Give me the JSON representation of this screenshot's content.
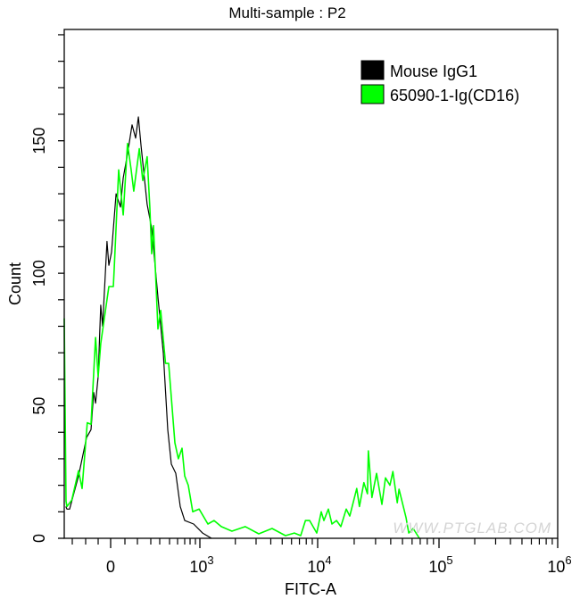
{
  "chart_data": {
    "type": "line",
    "title": "Multi-sample : P2",
    "xlabel": "FITC-A",
    "ylabel": "Count",
    "x_scale": "biexponential",
    "xlim": [
      -400,
      1000000
    ],
    "ylim": [
      0,
      192
    ],
    "x_ticks": [
      {
        "value": 0,
        "base": "0",
        "exp": ""
      },
      {
        "value": 1000,
        "base": "10",
        "exp": "3"
      },
      {
        "value": 10000,
        "base": "10",
        "exp": "4"
      },
      {
        "value": 100000,
        "base": "10",
        "exp": "5"
      },
      {
        "value": 1000000,
        "base": "10",
        "exp": "6"
      }
    ],
    "y_ticks": [
      {
        "value": 0,
        "label": "0"
      },
      {
        "value": 50,
        "label": "50"
      },
      {
        "value": 100,
        "label": "100"
      },
      {
        "value": 150,
        "label": "150"
      }
    ],
    "grid": false,
    "legend": {
      "position": "top-right",
      "entries": [
        {
          "label": "Mouse IgG1",
          "color": "#000000"
        },
        {
          "label": "65090-1-Ig(CD16)",
          "color": "#00ff00"
        }
      ]
    },
    "watermark": "WWW.PTGLAB.COM",
    "series": [
      {
        "name": "Mouse IgG1",
        "color": "#000000",
        "x": [
          -380,
          -367,
          -333,
          -253,
          -193,
          -157,
          -136,
          -121,
          -100,
          -79,
          -64,
          -29,
          -14,
          6,
          38,
          69,
          88,
          121,
          157,
          186,
          207,
          227,
          273,
          310,
          380,
          436,
          482,
          522,
          578,
          638,
          700,
          867,
          1054,
          1254
        ],
        "y": [
          12,
          11,
          11,
          23.5,
          38,
          41,
          55,
          51,
          61,
          88,
          80,
          112,
          103,
          108,
          130,
          125,
          136,
          145,
          156,
          151,
          159,
          148,
          126,
          117,
          91,
          70,
          41,
          28,
          24.5,
          12,
          6.7,
          5.4,
          2,
          0
        ]
      },
      {
        "name": "65090-1-Ig(CD16)",
        "color": "#00ff00",
        "x": [
          -400,
          -378,
          -367,
          -307,
          -253,
          -227,
          -187,
          -157,
          -121,
          -100,
          -79,
          -14,
          19,
          25,
          56,
          88,
          121,
          150,
          171,
          214,
          240,
          273,
          293,
          310,
          330,
          380,
          410,
          459,
          491,
          567,
          611,
          663,
          700,
          767,
          850,
          983,
          1170,
          1320,
          1520,
          1870,
          2430,
          3160,
          4100,
          5330,
          6340,
          7180,
          7880,
          8550,
          9830,
          10700,
          11260,
          12250,
          13110,
          14290,
          15540,
          17190,
          18390,
          21010,
          22100,
          24040,
          25740,
          26180,
          27990,
          30560,
          33830,
          36190,
          39430,
          41640,
          45300,
          46850,
          50960,
          53570,
          56330,
          61210,
          68910
        ],
        "y": [
          83,
          14,
          12,
          14.4,
          25.5,
          18.8,
          43.6,
          43,
          75.8,
          61,
          73.5,
          95,
          95,
          101.7,
          139,
          122,
          149,
          139,
          131,
          147,
          135,
          144,
          125,
          107.4,
          118,
          79,
          86,
          66,
          66,
          36,
          30,
          34,
          23.5,
          20,
          10,
          11,
          5.4,
          6.7,
          4.4,
          2.7,
          4.4,
          1.7,
          3.7,
          1,
          2,
          1,
          6.7,
          6.7,
          2,
          10,
          6.7,
          11,
          5.4,
          6.7,
          4.4,
          11,
          8.4,
          18.8,
          12,
          21,
          16.8,
          33,
          15.4,
          24.5,
          12.8,
          22.8,
          20,
          25.2,
          13.4,
          18.5,
          11.7,
          7.7,
          2,
          3.7,
          0
        ]
      }
    ]
  }
}
